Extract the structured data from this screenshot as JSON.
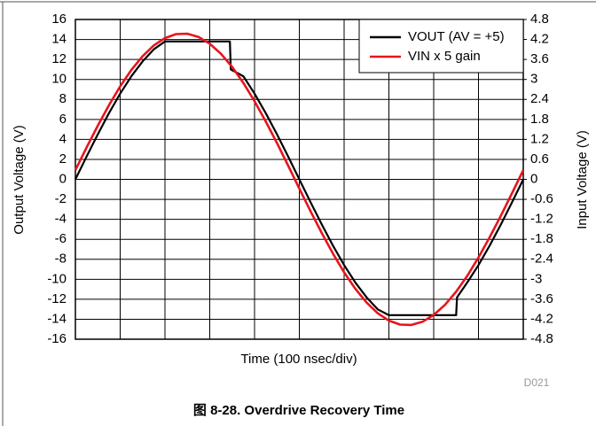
{
  "chart_data": {
    "type": "line",
    "xlabel": "Time (100 nsec/div)",
    "ylabel": "Output Voltage (V)",
    "y2label": "Input Voltage (V)",
    "caption": "图 8-28. Overdrive Recovery Time",
    "figure_id": "D021",
    "xlim": [
      0,
      10
    ],
    "xticks": [
      0,
      1,
      2,
      3,
      4,
      5,
      6,
      7,
      8,
      9,
      10
    ],
    "ylim": [
      -16,
      16
    ],
    "yticks": [
      -16,
      -14,
      -12,
      -10,
      -8,
      -6,
      -4,
      -2,
      0,
      2,
      4,
      6,
      8,
      10,
      12,
      14,
      16
    ],
    "y2lim": [
      -4.8,
      4.8
    ],
    "y2ticks": [
      -4.8,
      -4.2,
      -3.6,
      -3,
      -2.4,
      -1.8,
      -1.2,
      -0.6,
      0,
      0.6,
      1.2,
      1.8,
      2.4,
      3,
      3.6,
      4.2,
      4.8
    ],
    "grid": true,
    "legend": "upper right",
    "series": [
      {
        "name": "VOUT (AV = +5)",
        "color": "#000000",
        "x": [
          0,
          0.25,
          0.5,
          0.75,
          1,
          1.25,
          1.5,
          1.75,
          2,
          2.25,
          2.5,
          2.75,
          3,
          3.25,
          3.45,
          3.47,
          3.75,
          4,
          4.25,
          4.5,
          4.75,
          5,
          5.25,
          5.5,
          5.75,
          6,
          6.25,
          6.5,
          6.75,
          7,
          7.5,
          8,
          8.5,
          8.52,
          8.75,
          9,
          9.25,
          9.5,
          9.75,
          10
        ],
        "values": [
          0,
          2.28,
          4.51,
          6.63,
          8.58,
          10.32,
          11.81,
          13.01,
          13.8,
          13.8,
          13.8,
          13.8,
          13.8,
          13.8,
          13.8,
          11.0,
          10.32,
          8.58,
          6.63,
          4.51,
          2.28,
          0,
          -2.28,
          -4.51,
          -6.63,
          -8.58,
          -10.32,
          -11.81,
          -13.01,
          -13.6,
          -13.6,
          -13.6,
          -13.6,
          -11.81,
          -10.32,
          -8.58,
          -6.63,
          -4.51,
          -2.28,
          0
        ]
      },
      {
        "name": "VIN x 5 gain",
        "color": "#e8141c",
        "x": [
          0,
          0.25,
          0.5,
          0.75,
          1,
          1.25,
          1.5,
          1.75,
          2,
          2.25,
          2.5,
          2.75,
          3,
          3.25,
          3.5,
          3.75,
          4,
          4.25,
          4.5,
          4.75,
          5,
          5.25,
          5.5,
          5.75,
          6,
          6.25,
          6.5,
          6.75,
          7,
          7.25,
          7.5,
          7.75,
          8,
          8.25,
          8.5,
          8.75,
          9,
          9.25,
          9.5,
          9.75,
          10
        ],
        "values": [
          0.92,
          3.18,
          5.37,
          7.43,
          9.31,
          10.95,
          12.33,
          13.4,
          14.14,
          14.54,
          14.57,
          14.25,
          13.57,
          12.57,
          11.25,
          9.65,
          7.82,
          5.8,
          3.63,
          1.37,
          -0.92,
          -3.18,
          -5.37,
          -7.43,
          -9.31,
          -10.95,
          -12.33,
          -13.4,
          -14.14,
          -14.54,
          -14.57,
          -14.25,
          -13.57,
          -12.57,
          -11.25,
          -9.65,
          -7.82,
          -5.8,
          -3.63,
          -1.37,
          0.92
        ]
      }
    ]
  }
}
